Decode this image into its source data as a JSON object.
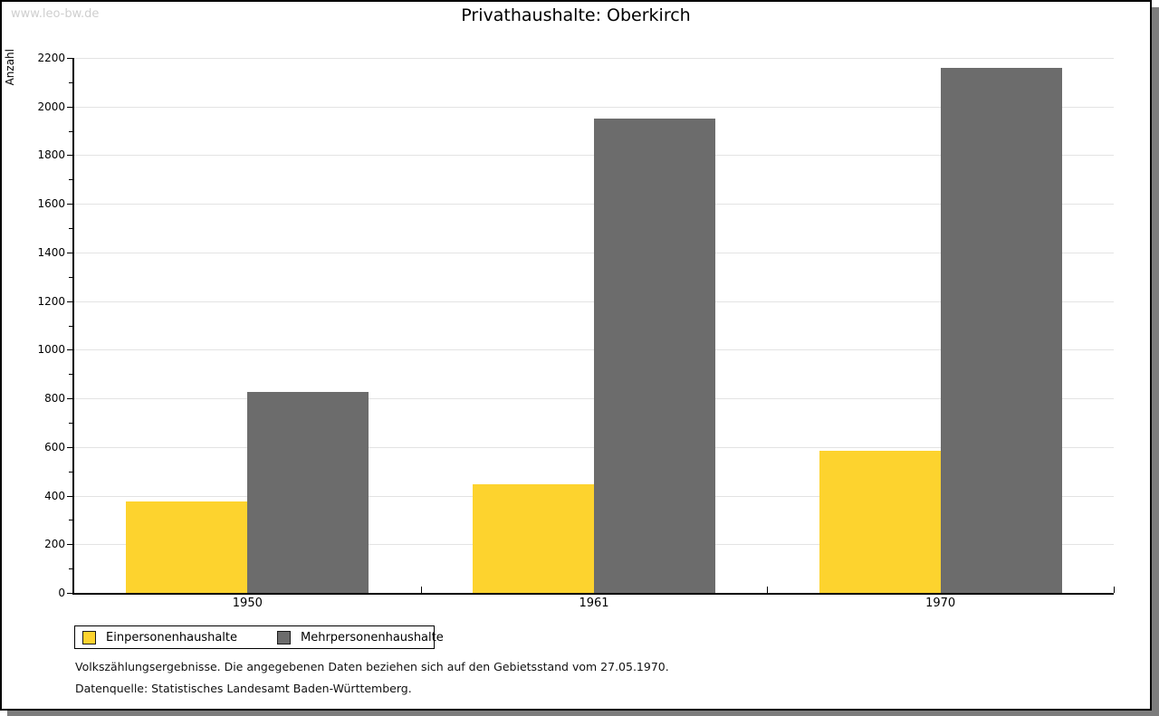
{
  "watermark": "www.leo-bw.de",
  "title": "Privathaushalte: Oberkirch",
  "chart_data": {
    "type": "bar",
    "title": "Privathaushalte: Oberkirch",
    "categories": [
      "1950",
      "1961",
      "1970"
    ],
    "series": [
      {
        "name": "Einpersonenhaushalte",
        "color": "#fdd32e",
        "values": [
          375,
          445,
          585
        ]
      },
      {
        "name": "Mehrpersonenhaushalte",
        "color": "#6c6c6c",
        "values": [
          825,
          1950,
          2160
        ]
      }
    ],
    "xlabel": "",
    "ylabel": "Anzahl",
    "ylim": [
      0,
      2200
    ],
    "ytick_major_step": 200,
    "ytick_minor_step": 100,
    "grid": true,
    "gridline_color": "#e3e3e3",
    "legend_position": "bottom-left"
  },
  "footer": {
    "line1": "Volkszählungsergebnisse. Die angegebenen Daten beziehen sich auf den Gebietsstand vom 27.05.1970.",
    "line2": "Datenquelle: Statistisches Landesamt Baden-Württemberg."
  }
}
